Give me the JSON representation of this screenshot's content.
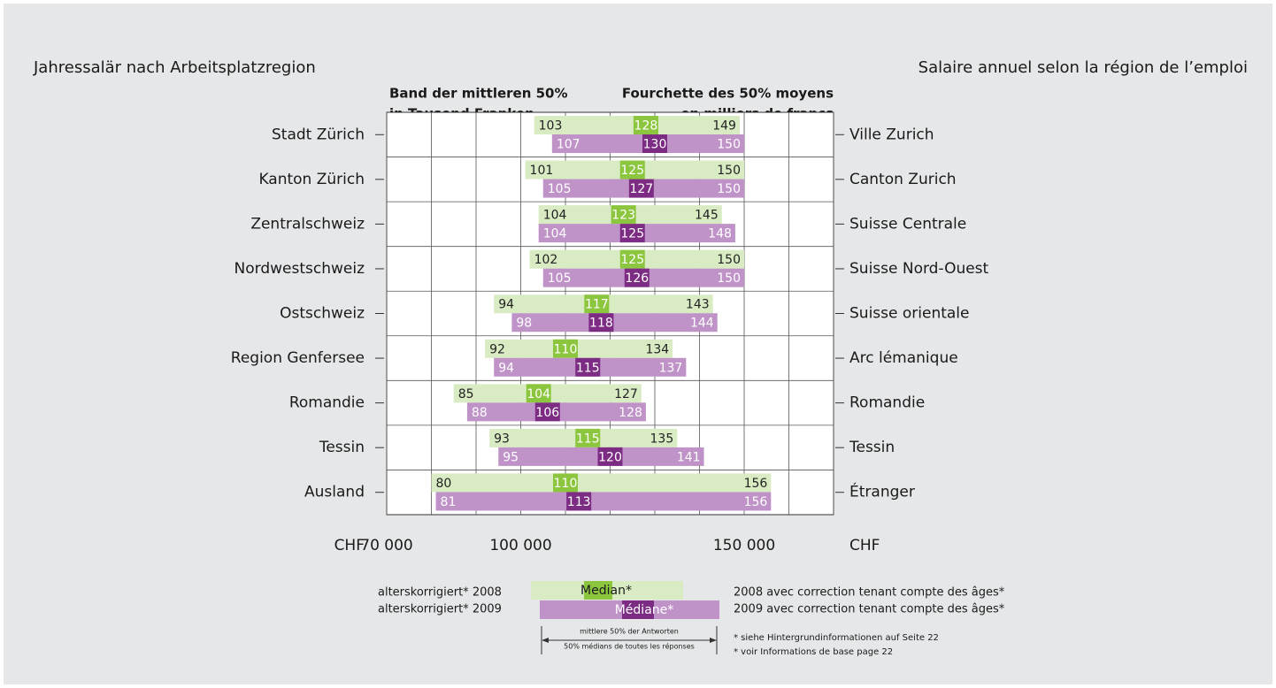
{
  "chart_data": {
    "type": "range_bar",
    "title": "Jahressalär nach Arbeitsplatzregion",
    "title_right": "Salaire annuel selon la région de l’emploi",
    "subtitle": [
      "Band der mittleren 50%",
      "in Tausend Franken"
    ],
    "subtitle_right": [
      "Fourchette des 50% moyens",
      "en milliers de francs"
    ],
    "categories": [
      "Stadt Zürich",
      "Kanton Zürich",
      "Zentralschweiz",
      "Nordwestschweiz",
      "Ostschweiz",
      "Region Genfersee",
      "Romandie",
      "Tessin",
      "Ausland"
    ],
    "categories_right": [
      "Ville Zurich",
      "Canton Zurich",
      "Suisse Centrale",
      "Suisse Nord-Ouest",
      "Suisse orientale",
      "Arc lémanique",
      "Romandie",
      "Tessin",
      "Étranger"
    ],
    "x_label": "CHF",
    "x_label_right": "CHF",
    "xlim": [
      70,
      170
    ],
    "xticks": [
      {
        "value": 70,
        "label": "70 000"
      },
      {
        "value": 100,
        "label": "100 000"
      },
      {
        "value": 150,
        "label": "150 000"
      }
    ],
    "xgrid": [
      70,
      80,
      90,
      100,
      110,
      120,
      130,
      140,
      150,
      160,
      170
    ],
    "series": [
      {
        "name": "alterskorrigiert* 2008",
        "name_right": "2008 avec correction tenant compte des âges*",
        "color": "#d8ebc3",
        "median_color": "#8cc63e",
        "label_color": "#222222",
        "median_label": "Median*",
        "low": [
          103,
          101,
          104,
          102,
          94,
          92,
          85,
          93,
          80
        ],
        "median": [
          128,
          125,
          123,
          125,
          117,
          110,
          104,
          115,
          110
        ],
        "high": [
          149,
          150,
          145,
          150,
          143,
          134,
          127,
          135,
          156
        ]
      },
      {
        "name": "alterskorrigiert* 2009",
        "name_right": "2009 avec correction tenant compte des âges*",
        "color": "#bf92c8",
        "median_color": "#7d2c84",
        "label_color": "#ffffff",
        "median_label": "Médiane*",
        "low": [
          107,
          105,
          104,
          105,
          98,
          94,
          88,
          95,
          81
        ],
        "median": [
          130,
          127,
          125,
          126,
          118,
          115,
          106,
          120,
          113
        ],
        "high": [
          150,
          150,
          148,
          150,
          144,
          137,
          128,
          141,
          156
        ]
      }
    ],
    "legend_range": [
      "mittlere 50% der Antworten",
      "50% médians de toutes les réponses"
    ],
    "footnotes": [
      "* siehe Hintergrundinformationen auf Seite 22",
      "* voir Informations de base page 22"
    ]
  }
}
